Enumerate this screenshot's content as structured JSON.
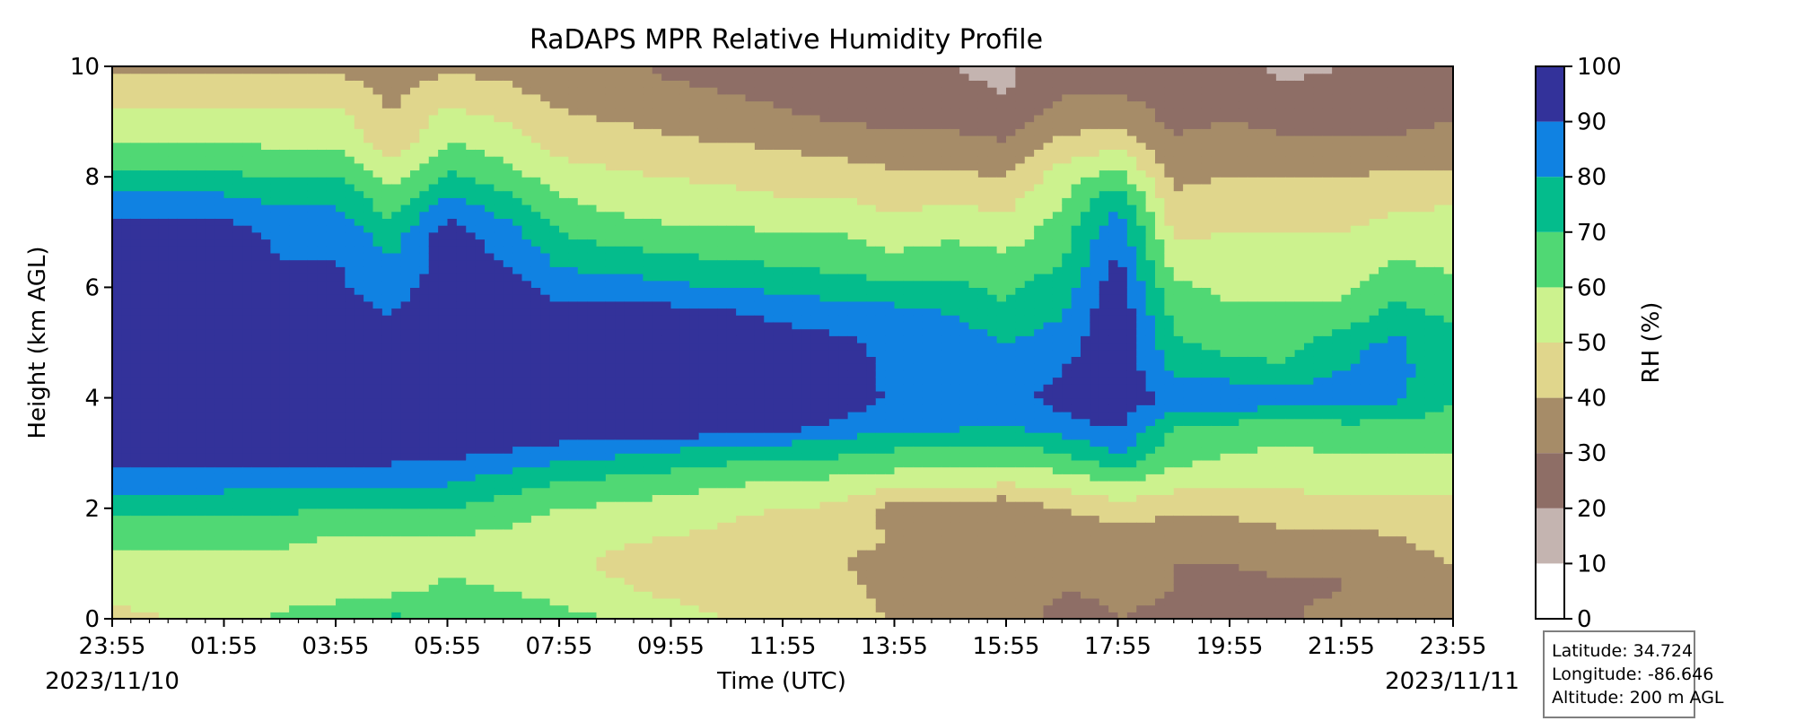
{
  "chart_data": {
    "type": "heatmap",
    "title": "RaDAPS MPR Relative Humidity Profile",
    "xlabel": "Time (UTC)",
    "ylabel": "Height (km AGL)",
    "x_ticks": [
      "23:55",
      "01:55",
      "03:55",
      "05:55",
      "07:55",
      "09:55",
      "11:55",
      "13:55",
      "15:55",
      "17:55",
      "19:55",
      "21:55",
      "23:55"
    ],
    "x_start_label": "2023/11/10",
    "x_end_label": "2023/11/11",
    "ylim": [
      0,
      10
    ],
    "y_ticks": [
      "0",
      "2",
      "4",
      "6",
      "8",
      "10"
    ],
    "colorbar": {
      "label": "RH (%)",
      "levels": [
        0,
        10,
        20,
        30,
        40,
        50,
        60,
        70,
        80,
        90,
        100
      ],
      "tick_labels": [
        "0",
        "10",
        "20",
        "30",
        "40",
        "50",
        "60",
        "70",
        "80",
        "90",
        "100"
      ],
      "colors": [
        "#ffffff",
        "#c4b4b0",
        "#8e6e66",
        "#a68c68",
        "#e0d68c",
        "#ccf28e",
        "#50d874",
        "#04bc8c",
        "#1082e2",
        "#33329a"
      ]
    },
    "hours": [
      0,
      1,
      2,
      3,
      4,
      5,
      6,
      7,
      8,
      9,
      10,
      11,
      12,
      13,
      14,
      15,
      16,
      17,
      18,
      19,
      20,
      21,
      22,
      23,
      24
    ],
    "heights_km": [
      0,
      0.5,
      1,
      1.5,
      2,
      2.5,
      3,
      3.5,
      4,
      4.5,
      5,
      5.5,
      6,
      6.5,
      7,
      7.5,
      8,
      8.5,
      9,
      9.5,
      10
    ],
    "rh_percent": [
      [
        45,
        55,
        58,
        62,
        72,
        85,
        95,
        98,
        98,
        98,
        98,
        97,
        96,
        95,
        95,
        85,
        72,
        62,
        55,
        45,
        38
      ],
      [
        50,
        55,
        58,
        62,
        72,
        85,
        95,
        98,
        98,
        98,
        98,
        97,
        96,
        95,
        95,
        85,
        72,
        62,
        55,
        45,
        38
      ],
      [
        55,
        58,
        58,
        62,
        72,
        85,
        95,
        98,
        98,
        98,
        98,
        97,
        96,
        95,
        95,
        85,
        72,
        62,
        55,
        45,
        38
      ],
      [
        62,
        55,
        58,
        62,
        72,
        82,
        95,
        98,
        98,
        98,
        98,
        95,
        92,
        90,
        88,
        80,
        70,
        60,
        55,
        45,
        38
      ],
      [
        68,
        55,
        55,
        60,
        70,
        82,
        95,
        98,
        98,
        98,
        98,
        95,
        92,
        90,
        88,
        80,
        70,
        60,
        55,
        45,
        38
      ],
      [
        72,
        58,
        55,
        60,
        70,
        82,
        95,
        98,
        98,
        98,
        95,
        90,
        85,
        80,
        75,
        65,
        55,
        45,
        40,
        38,
        35
      ],
      [
        70,
        62,
        58,
        60,
        70,
        82,
        92,
        98,
        98,
        98,
        98,
        97,
        96,
        95,
        95,
        85,
        72,
        62,
        55,
        45,
        38
      ],
      [
        65,
        60,
        58,
        58,
        65,
        75,
        90,
        98,
        98,
        98,
        98,
        97,
        96,
        90,
        85,
        75,
        65,
        58,
        50,
        42,
        38
      ],
      [
        62,
        58,
        52,
        55,
        60,
        70,
        85,
        98,
        98,
        98,
        98,
        96,
        85,
        78,
        70,
        62,
        55,
        48,
        42,
        38,
        35
      ],
      [
        60,
        52,
        48,
        52,
        58,
        68,
        82,
        98,
        98,
        98,
        98,
        95,
        85,
        75,
        65,
        58,
        52,
        45,
        40,
        35,
        32
      ],
      [
        55,
        48,
        45,
        50,
        55,
        65,
        78,
        98,
        98,
        98,
        98,
        95,
        82,
        72,
        62,
        55,
        50,
        42,
        38,
        32,
        28
      ],
      [
        50,
        45,
        42,
        48,
        52,
        62,
        75,
        98,
        98,
        98,
        98,
        92,
        80,
        70,
        62,
        55,
        48,
        42,
        35,
        30,
        28
      ],
      [
        45,
        42,
        40,
        45,
        50,
        60,
        72,
        95,
        98,
        98,
        95,
        88,
        78,
        68,
        60,
        52,
        45,
        40,
        32,
        28,
        25
      ],
      [
        42,
        42,
        40,
        42,
        48,
        58,
        72,
        88,
        98,
        98,
        92,
        85,
        75,
        65,
        60,
        52,
        45,
        38,
        30,
        25,
        22
      ],
      [
        40,
        38,
        38,
        40,
        35,
        55,
        68,
        82,
        88,
        85,
        88,
        85,
        72,
        62,
        55,
        48,
        42,
        35,
        28,
        22,
        20
      ],
      [
        40,
        38,
        38,
        40,
        35,
        55,
        68,
        82,
        88,
        85,
        88,
        80,
        72,
        65,
        58,
        50,
        42,
        35,
        28,
        22,
        20
      ],
      [
        40,
        38,
        38,
        38,
        32,
        52,
        65,
        80,
        85,
        82,
        80,
        72,
        68,
        62,
        55,
        48,
        40,
        32,
        25,
        20,
        18
      ],
      [
        25,
        30,
        30,
        35,
        40,
        55,
        70,
        85,
        95,
        90,
        85,
        80,
        75,
        70,
        65,
        60,
        55,
        45,
        35,
        30,
        25
      ],
      [
        30,
        32,
        32,
        35,
        45,
        62,
        80,
        92,
        98,
        98,
        98,
        98,
        96,
        92,
        88,
        80,
        65,
        50,
        38,
        30,
        25
      ],
      [
        28,
        30,
        30,
        35,
        42,
        55,
        65,
        70,
        88,
        78,
        72,
        68,
        62,
        55,
        48,
        42,
        38,
        32,
        28,
        25,
        25
      ],
      [
        25,
        28,
        30,
        35,
        42,
        52,
        60,
        68,
        88,
        75,
        65,
        62,
        58,
        55,
        50,
        45,
        40,
        35,
        30,
        25,
        22
      ],
      [
        28,
        28,
        32,
        38,
        45,
        52,
        58,
        65,
        88,
        72,
        65,
        62,
        58,
        55,
        50,
        45,
        40,
        32,
        28,
        22,
        18
      ],
      [
        35,
        30,
        30,
        38,
        45,
        55,
        60,
        68,
        85,
        80,
        78,
        62,
        58,
        55,
        50,
        45,
        40,
        32,
        28,
        22,
        20
      ],
      [
        38,
        38,
        38,
        40,
        45,
        55,
        60,
        68,
        82,
        82,
        82,
        75,
        65,
        60,
        55,
        48,
        42,
        32,
        28,
        25,
        25
      ],
      [
        40,
        40,
        40,
        42,
        45,
        55,
        60,
        65,
        72,
        75,
        72,
        68,
        62,
        58,
        55,
        50,
        42,
        35,
        30,
        28,
        28
      ]
    ],
    "grid": false
  },
  "station": {
    "latitude": "Latitude: 34.724",
    "longitude": "Longitude: -86.646",
    "altitude": "Altitude: 200 m AGL"
  }
}
